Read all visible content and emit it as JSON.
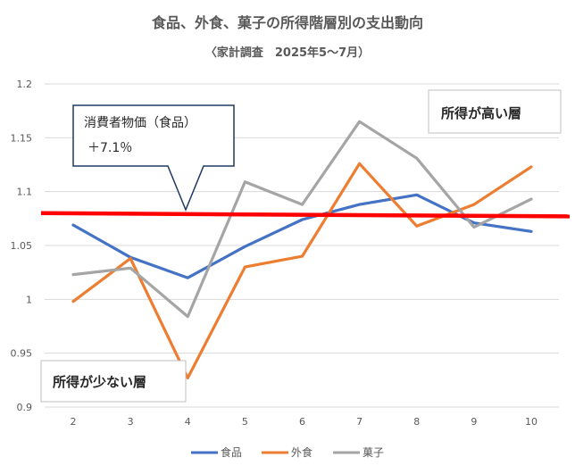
{
  "chart_data": {
    "type": "line",
    "title": "食品、外食、菓子の所得階層別の支出動向",
    "subtitle": "〈家計調査　2025年5～7月）",
    "x": [
      "2",
      "3",
      "4",
      "5",
      "6",
      "7",
      "8",
      "9",
      "10"
    ],
    "ylim": [
      0.9,
      1.2
    ],
    "yticks": [
      "0.9",
      "0.95",
      "1",
      "1.05",
      "1.1",
      "1.15",
      "1.2"
    ],
    "grid": true,
    "legend_position": "bottom",
    "series": [
      {
        "name": "食品",
        "color": "#4472C4",
        "values": [
          1.069,
          1.039,
          1.02,
          1.049,
          1.074,
          1.088,
          1.097,
          1.071,
          1.063
        ]
      },
      {
        "name": "外食",
        "color": "#ED7D31",
        "values": [
          0.998,
          1.038,
          0.927,
          1.03,
          1.04,
          1.126,
          1.068,
          1.088,
          1.123
        ]
      },
      {
        "name": "菓子",
        "color": "#A5A5A5",
        "values": [
          1.023,
          1.029,
          0.984,
          1.109,
          1.088,
          1.165,
          1.131,
          1.067,
          1.093
        ]
      }
    ],
    "reference_line": {
      "y_start": 1.08,
      "y_end": 1.077,
      "color": "#FF0000"
    },
    "annotations": {
      "callout_line1": "消費者物価（食品）",
      "callout_line2": "＋7.1％",
      "high_income": "所得が高い層",
      "low_income": "所得が少ない層"
    }
  }
}
